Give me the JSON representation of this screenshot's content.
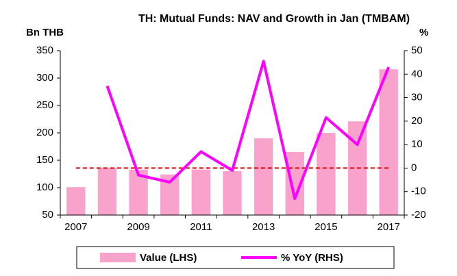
{
  "chart_data": {
    "type": "bar_line",
    "title": "TH: Mutual Funds: NAV and Growth in Jan (TMBAM)",
    "y_label": "Bn THB",
    "y2_label": "%",
    "categories": [
      "2007",
      null,
      "2009",
      null,
      "2011",
      null,
      "2013",
      null,
      "2015",
      null,
      "2017"
    ],
    "series": [
      {
        "name": "Value (LHS)",
        "type": "bar",
        "color": "#f9a3cc",
        "values": [
          101,
          136,
          133,
          124,
          133,
          130,
          190,
          165,
          200,
          221,
          316
        ]
      },
      {
        "name": "% YoY (RHS)",
        "type": "line",
        "axis": "y2",
        "color": "#ff00ff",
        "values": [
          null,
          35,
          -3,
          -6,
          7,
          -1,
          45.5,
          -13,
          21.5,
          10,
          43
        ]
      }
    ],
    "reference_line": {
      "axis": "y2",
      "value": 0,
      "color": "#e00000"
    },
    "ylim": [
      50,
      350
    ],
    "yticks": [
      50,
      100,
      150,
      200,
      250,
      300,
      350
    ],
    "y2lim": [
      -20,
      50
    ],
    "y2ticks": [
      -20,
      -10,
      0,
      10,
      20,
      30,
      40,
      50
    ],
    "legend": "bottom"
  }
}
